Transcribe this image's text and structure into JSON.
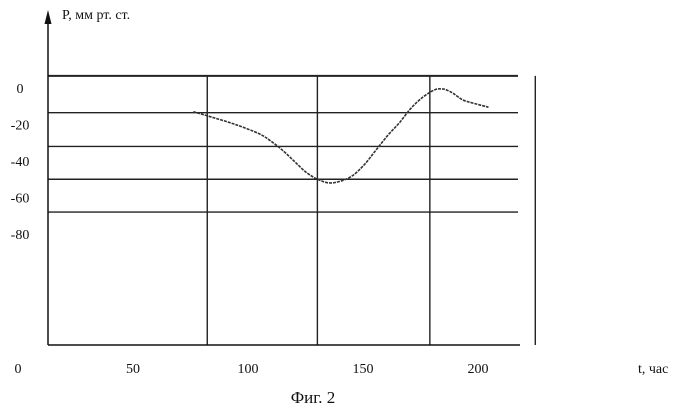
{
  "chart_data": {
    "type": "line",
    "ylabel": "P, мм рт. ст.",
    "xlabel": "t, час",
    "caption": "Фиг. 2",
    "x_ticks": [
      0,
      50,
      100,
      150,
      200
    ],
    "x_tick_labels": [
      "0",
      "50",
      "100",
      "150",
      "200"
    ],
    "y_ticks": [
      0,
      -20,
      -40,
      -60,
      -80
    ],
    "y_tick_labels": [
      "0",
      "-20",
      "-40",
      "-60",
      "-80"
    ],
    "xlim": [
      0,
      200
    ],
    "ylim": [
      -86,
      5
    ],
    "grid": true,
    "series": [
      {
        "x": [
          62,
          70,
          80,
          90,
          95,
          100,
          105,
          110,
          115,
          120,
          125,
          130,
          135,
          140,
          145,
          150,
          155,
          160,
          165,
          168,
          170,
          173,
          177,
          182,
          188
        ],
        "y": [
          -13,
          -16,
          -20,
          -25,
          -29,
          -34,
          -40,
          -46,
          -50,
          -52,
          -51,
          -48,
          -42,
          -34,
          -26,
          -19,
          -11,
          -5,
          -1,
          -0.5,
          -1,
          -3,
          -6.5,
          -8.5,
          -10.5
        ]
      }
    ]
  }
}
